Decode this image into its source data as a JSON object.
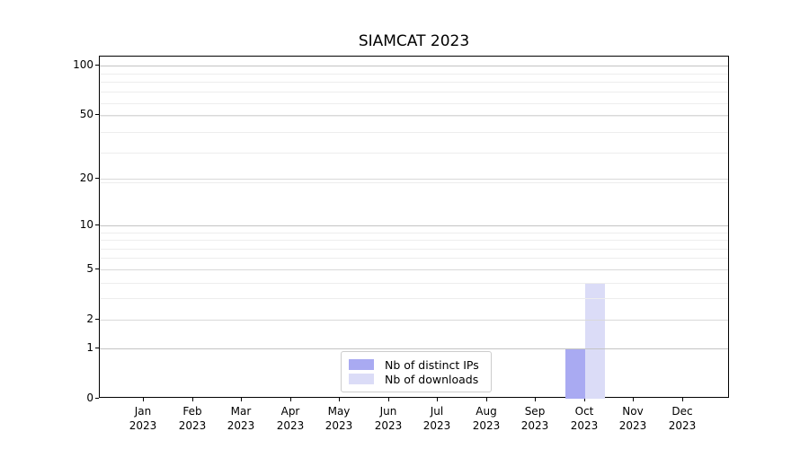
{
  "chart_data": {
    "type": "bar",
    "title": "SIAMCAT 2023",
    "categories": [
      "Jan",
      "Feb",
      "Mar",
      "Apr",
      "May",
      "Jun",
      "Jul",
      "Aug",
      "Sep",
      "Oct",
      "Nov",
      "Dec"
    ],
    "category_sublabel": "2023",
    "series": [
      {
        "name": "Nb of distinct IPs",
        "color": "#a9aaf2",
        "values": [
          0,
          0,
          0,
          0,
          0,
          0,
          0,
          0,
          0,
          1,
          0,
          0
        ]
      },
      {
        "name": "Nb of downloads",
        "color": "#dbdcf7",
        "values": [
          0,
          0,
          0,
          0,
          0,
          0,
          0,
          0,
          0,
          4,
          0,
          0
        ]
      }
    ],
    "xlabel": "",
    "ylabel": "",
    "yscale": "log1p",
    "ylim": [
      0,
      113
    ],
    "y_ticks": [
      0,
      1,
      2,
      5,
      10,
      20,
      50,
      100
    ],
    "y_decade_ticks": [
      1,
      10,
      100
    ],
    "y_minor_gridlines": [
      3,
      4,
      6,
      7,
      8,
      9,
      19,
      29,
      39,
      49,
      59,
      69,
      79,
      89
    ],
    "grid": "horizontal",
    "legend_position": "lower center"
  },
  "legend": {
    "entries": [
      "Nb of distinct IPs",
      "Nb of downloads"
    ]
  },
  "colors": {
    "background": "#ffffff",
    "spine": "#000000",
    "grid_major": "#d9d9d9",
    "grid_decade": "#c4c4c4",
    "grid_minor": "#ededed",
    "text": "#000000",
    "legend_border": "#cccccc"
  }
}
